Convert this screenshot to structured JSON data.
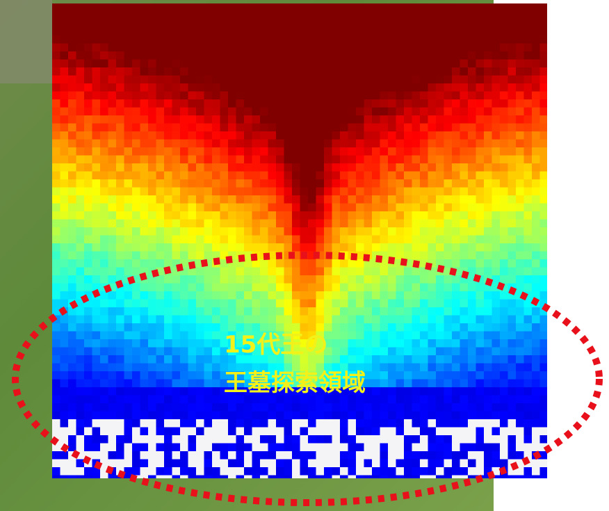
{
  "annotation": {
    "lines": [
      "15代王の",
      "王墓探索領域"
    ]
  }
}
